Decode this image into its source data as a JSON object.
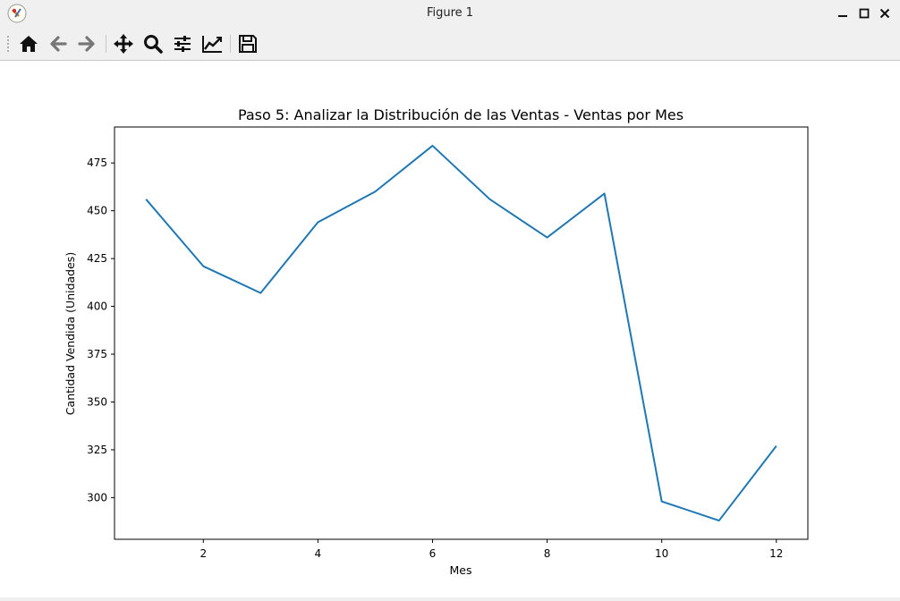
{
  "window": {
    "title": "Figure 1",
    "buttons": [
      "minimize",
      "maximize",
      "close"
    ]
  },
  "toolbar": {
    "items": [
      {
        "name": "home",
        "icon": "home-icon"
      },
      {
        "name": "back",
        "icon": "arrow-left-icon"
      },
      {
        "name": "forward",
        "icon": "arrow-right-icon"
      },
      {
        "name": "pan",
        "icon": "move-icon"
      },
      {
        "name": "zoom",
        "icon": "magnifier-icon"
      },
      {
        "name": "configure-subplots",
        "icon": "sliders-icon"
      },
      {
        "name": "edit-axis",
        "icon": "line-chart-icon"
      },
      {
        "name": "save",
        "icon": "floppy-disk-icon"
      }
    ]
  },
  "chart_data": {
    "type": "line",
    "title": "Paso 5: Analizar la Distribución de las Ventas - Ventas por Mes",
    "xlabel": "Mes",
    "ylabel": "Cantidad Vendida (Unidades)",
    "x": [
      1,
      2,
      3,
      4,
      5,
      6,
      7,
      8,
      9,
      10,
      11,
      12
    ],
    "series": [
      {
        "values": [
          456,
          421,
          407,
          444,
          460,
          484,
          456,
          436,
          459,
          298,
          288,
          327
        ],
        "color": "#1f77b4"
      }
    ],
    "xticks": [
      2,
      4,
      6,
      8,
      10,
      12
    ],
    "yticks": [
      300,
      325,
      350,
      375,
      400,
      425,
      450,
      475
    ],
    "xlim": [
      0.45,
      12.55
    ],
    "ylim": [
      278.2,
      493.8
    ],
    "grid": false
  }
}
